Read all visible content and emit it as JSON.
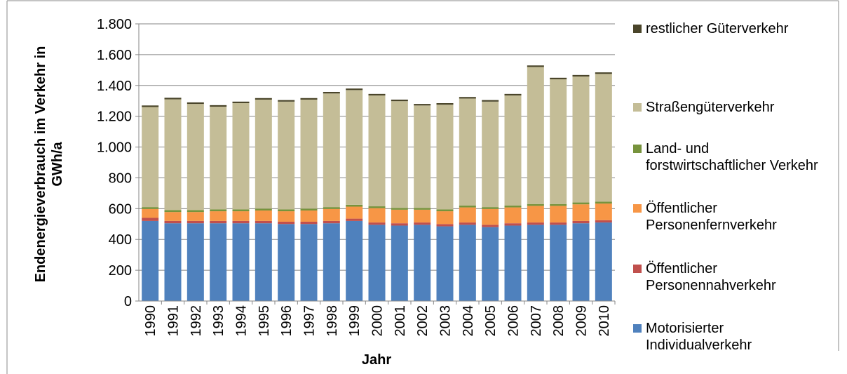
{
  "chart_data": {
    "type": "stacked-bar",
    "y_label": "Endenergieverbrauch im Verkehr in GWh/a",
    "x_label": "Jahr",
    "categories": [
      "1990",
      "1991",
      "1992",
      "1993",
      "1994",
      "1995",
      "1996",
      "1997",
      "1998",
      "1999",
      "2000",
      "2001",
      "2002",
      "2003",
      "2004",
      "2005",
      "2006",
      "2007",
      "2008",
      "2009",
      "2010"
    ],
    "series": [
      {
        "name": "Motorisierter Individualverkehr",
        "color": "#4f81bd",
        "values": [
          520,
          505,
          505,
          505,
          505,
          505,
          500,
          500,
          505,
          520,
          495,
          490,
          495,
          485,
          495,
          480,
          490,
          495,
          495,
          505,
          510
        ]
      },
      {
        "name": "Öffentlicher Personennahverkehr",
        "color": "#c0504d",
        "values": [
          20,
          15,
          15,
          15,
          15,
          15,
          15,
          15,
          15,
          15,
          15,
          15,
          15,
          15,
          15,
          15,
          15,
          15,
          15,
          15,
          15
        ]
      },
      {
        "name": "Öffentlicher Personenfernverkehr",
        "color": "#f79646",
        "values": [
          58,
          58,
          58,
          63,
          63,
          68,
          68,
          73,
          78,
          78,
          93,
          88,
          83,
          83,
          98,
          103,
          103,
          108,
          108,
          108,
          108
        ]
      },
      {
        "name": "Land- und forstwirtschaftlicher Verkehr",
        "color": "#77933c",
        "values": [
          12,
          12,
          12,
          12,
          12,
          12,
          12,
          12,
          12,
          12,
          12,
          12,
          12,
          12,
          12,
          12,
          12,
          12,
          12,
          12,
          12
        ]
      },
      {
        "name": "Straßengüterverkehr",
        "color": "#c4bd97",
        "values": [
          650,
          720,
          690,
          667,
          690,
          708,
          700,
          708,
          738,
          745,
          720,
          693,
          665,
          680,
          695,
          685,
          715,
          890,
          810,
          818,
          830
        ]
      },
      {
        "name": "restlicher Güterverkehr",
        "color": "#4a452a",
        "values": [
          10,
          10,
          10,
          10,
          10,
          10,
          10,
          10,
          10,
          10,
          10,
          10,
          10,
          10,
          10,
          10,
          10,
          10,
          10,
          10,
          10
        ]
      }
    ],
    "ylim": [
      0,
      1800
    ],
    "yticks": [
      0,
      200,
      400,
      600,
      800,
      {
        "value": 1000,
        "label": "1.000"
      },
      {
        "value": 1200,
        "label": "1.200"
      },
      {
        "value": 1400,
        "label": "1.400"
      },
      {
        "value": 1600,
        "label": "1.600"
      },
      {
        "value": 1800,
        "label": "1.800"
      }
    ],
    "grid": true
  }
}
